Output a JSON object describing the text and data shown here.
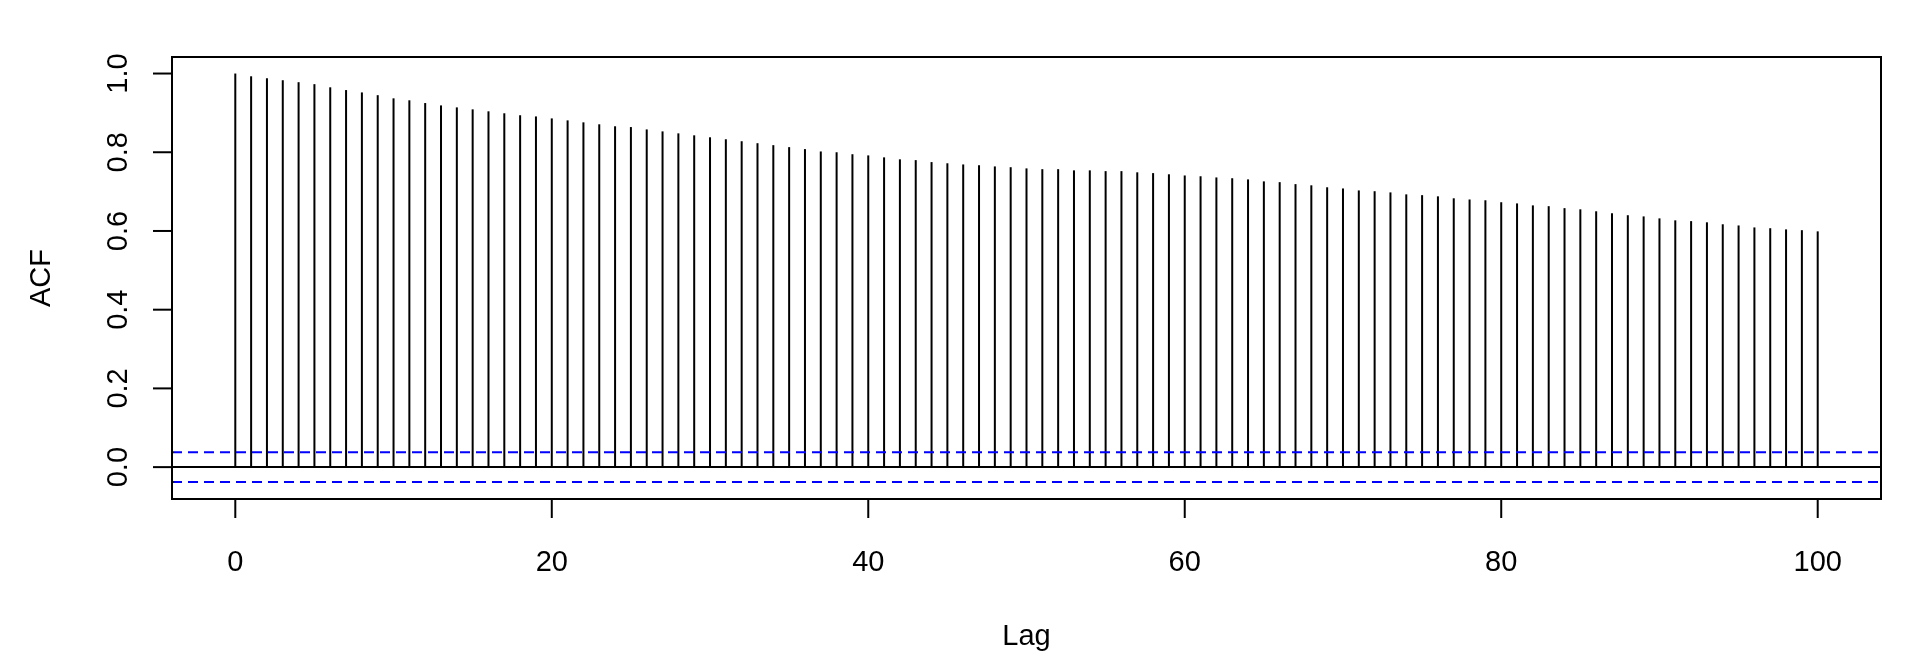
{
  "chart_data": {
    "type": "bar",
    "xlabel": "Lag",
    "ylabel": "ACF",
    "x": [
      0,
      1,
      2,
      3,
      4,
      5,
      6,
      7,
      8,
      9,
      10,
      11,
      12,
      13,
      14,
      15,
      16,
      17,
      18,
      19,
      20,
      21,
      22,
      23,
      24,
      25,
      26,
      27,
      28,
      29,
      30,
      31,
      32,
      33,
      34,
      35,
      36,
      37,
      38,
      39,
      40,
      41,
      42,
      43,
      44,
      45,
      46,
      47,
      48,
      49,
      50,
      51,
      52,
      53,
      54,
      55,
      56,
      57,
      58,
      59,
      60,
      61,
      62,
      63,
      64,
      65,
      66,
      67,
      68,
      69,
      70,
      71,
      72,
      73,
      74,
      75,
      76,
      77,
      78,
      79,
      80,
      81,
      82,
      83,
      84,
      85,
      86,
      87,
      88,
      89,
      90,
      91,
      92,
      93,
      94,
      95,
      96,
      97,
      98,
      99,
      100
    ],
    "values": [
      1.0,
      0.993,
      0.988,
      0.983,
      0.978,
      0.973,
      0.965,
      0.958,
      0.952,
      0.945,
      0.937,
      0.932,
      0.925,
      0.919,
      0.914,
      0.909,
      0.904,
      0.899,
      0.894,
      0.891,
      0.886,
      0.881,
      0.876,
      0.871,
      0.866,
      0.864,
      0.858,
      0.853,
      0.848,
      0.843,
      0.838,
      0.833,
      0.828,
      0.823,
      0.818,
      0.813,
      0.808,
      0.802,
      0.8,
      0.795,
      0.792,
      0.787,
      0.782,
      0.78,
      0.775,
      0.772,
      0.769,
      0.767,
      0.764,
      0.762,
      0.759,
      0.757,
      0.757,
      0.754,
      0.754,
      0.752,
      0.752,
      0.749,
      0.747,
      0.744,
      0.741,
      0.739,
      0.736,
      0.734,
      0.731,
      0.726,
      0.724,
      0.719,
      0.716,
      0.711,
      0.708,
      0.703,
      0.701,
      0.698,
      0.693,
      0.691,
      0.688,
      0.683,
      0.68,
      0.678,
      0.673,
      0.67,
      0.665,
      0.663,
      0.658,
      0.655,
      0.65,
      0.645,
      0.64,
      0.637,
      0.632,
      0.627,
      0.625,
      0.622,
      0.617,
      0.614,
      0.609,
      0.607,
      0.604,
      0.602,
      0.599
    ],
    "color": "#000000",
    "xlim": [
      -4,
      104
    ],
    "xticks": [
      0,
      20,
      40,
      60,
      80,
      100
    ],
    "ylim": [
      -0.081,
      1.042
    ],
    "yticks": [
      {
        "value": 0,
        "label": "0.0"
      },
      0.2,
      0.4,
      0.6,
      0.8,
      {
        "value": 1,
        "label": "1.0"
      }
    ],
    "ref_lines": [
      {
        "axis": "y",
        "value": 0,
        "color": "#000000",
        "line_style": "solid"
      },
      {
        "axis": "y",
        "value": 0.038,
        "color": "#0000ff",
        "line_style": "dashed"
      },
      {
        "axis": "y",
        "value": -0.038,
        "color": "#0000ff",
        "line_style": "dashed"
      }
    ]
  }
}
